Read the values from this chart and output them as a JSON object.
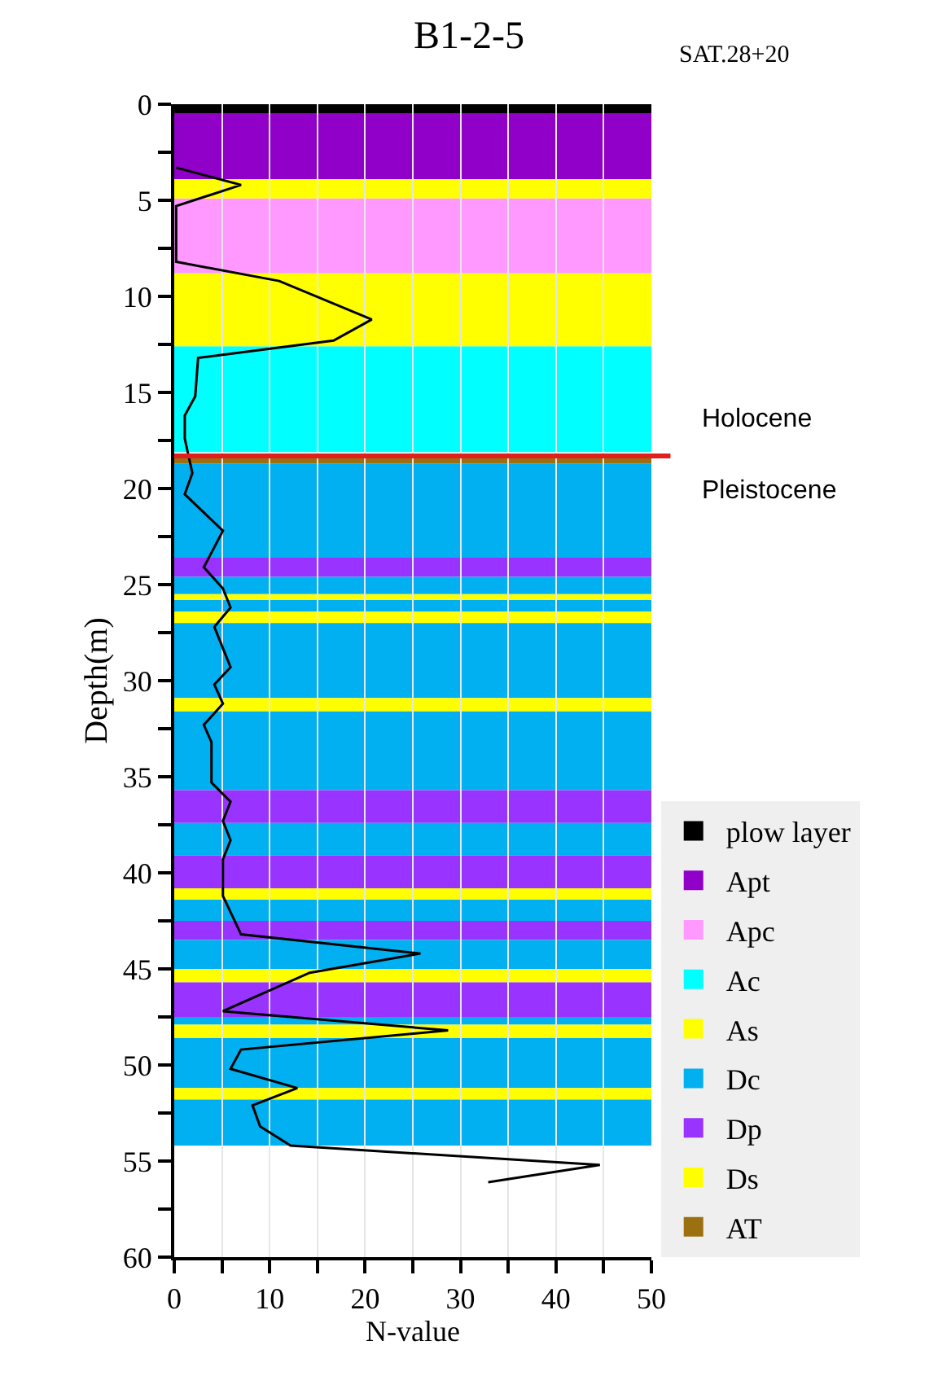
{
  "chart_data": {
    "type": "line",
    "title": "B1-2-5",
    "subtitle": "SAT.28+20",
    "xlabel": "N-value",
    "ylabel": "Depth(m)",
    "xlim": [
      0,
      50
    ],
    "xticks": [
      0,
      {
        "value": 5,
        "label": null
      },
      10,
      {
        "value": 15,
        "label": null
      },
      20,
      {
        "value": 25,
        "label": null
      },
      30,
      {
        "value": 35,
        "label": null
      },
      40,
      {
        "value": 45,
        "label": null
      },
      50
    ],
    "ylim": [
      60,
      0
    ],
    "yticks": [
      0,
      {
        "value": 2.5,
        "label": null
      },
      5,
      {
        "value": 7.5,
        "label": null
      },
      10,
      {
        "value": 12.5,
        "label": null
      },
      15,
      {
        "value": 17.5,
        "label": null
      },
      20,
      {
        "value": 22.5,
        "label": null
      },
      25,
      {
        "value": 27.5,
        "label": null
      },
      30,
      {
        "value": 32.5,
        "label": null
      },
      35,
      {
        "value": 37.5,
        "label": null
      },
      40,
      {
        "value": 42.5,
        "label": null
      },
      45,
      {
        "value": 47.5,
        "label": null
      },
      50,
      {
        "value": 52.5,
        "label": null
      },
      55,
      {
        "value": 57.5,
        "label": null
      },
      60
    ],
    "grid": "x",
    "legend": "right",
    "marker": "none",
    "line_style": "solid",
    "series": [
      {
        "color": "#000000",
        "x": [
          0.2,
          7.0,
          0.2,
          0.2,
          11.0,
          20.7,
          16.7,
          2.5,
          2.2,
          1.1,
          1.1,
          1.9,
          1.1,
          5.1,
          3.1,
          5.1,
          5.9,
          4.2,
          5.9,
          4.2,
          5.1,
          3.1,
          3.9,
          3.9,
          5.9,
          5.1,
          5.9,
          5.1,
          5.1,
          7.0,
          25.8,
          14.2,
          5.1,
          28.7,
          7.0,
          5.9,
          12.9,
          8.2,
          9.0,
          12.2,
          44.6,
          32.9
        ],
        "values": [
          3.3,
          4.2,
          5.3,
          8.2,
          9.2,
          11.2,
          12.3,
          13.2,
          15.2,
          16.2,
          17.4,
          19.2,
          20.3,
          22.2,
          24.1,
          25.2,
          26.2,
          27.2,
          29.3,
          30.2,
          31.2,
          32.3,
          33.2,
          35.3,
          36.3,
          37.3,
          38.3,
          39.3,
          41.2,
          43.2,
          44.2,
          45.2,
          47.2,
          48.2,
          49.2,
          50.2,
          51.2,
          52.1,
          53.2,
          54.2,
          55.2,
          56.1
        ]
      }
    ],
    "bands": [
      {
        "axis": "y",
        "from": 0,
        "to": 0.5,
        "label": "plow layer",
        "color": "#000000"
      },
      {
        "axis": "y",
        "from": 0.5,
        "to": 3.9,
        "label": "Apt",
        "color": "#9000c8"
      },
      {
        "axis": "y",
        "from": 4.9,
        "to": 8.8,
        "label": "Apc",
        "color": "#ff99ff"
      },
      {
        "axis": "y",
        "from": 12.6,
        "to": 18.1,
        "label": "Ac",
        "color": "#00ffff"
      },
      {
        "axis": "y",
        "from": 8.8,
        "to": 12.6,
        "label": "As",
        "color": "#ffff00"
      },
      {
        "axis": "y",
        "from": 18.7,
        "to": 23.6,
        "label": "Dc",
        "color": "#00b0f0"
      },
      {
        "axis": "y",
        "from": 23.6,
        "to": 24.6,
        "label": "Dp",
        "color": "#9933ff"
      },
      {
        "axis": "y",
        "from": 26.4,
        "to": 27.0,
        "label": "Ds",
        "color": "#ffff00"
      },
      {
        "axis": "y",
        "from": 18.3,
        "to": 18.7,
        "label": "AT",
        "color": "#9c6f10"
      },
      {
        "axis": "y",
        "from": 3.9,
        "to": 4.9,
        "color": "#ffff00"
      },
      {
        "axis": "y",
        "from": 24.6,
        "to": 25.5,
        "color": "#00b0f0"
      },
      {
        "axis": "y",
        "from": 25.5,
        "to": 25.8,
        "color": "#ffff00"
      },
      {
        "axis": "y",
        "from": 25.8,
        "to": 26.4,
        "color": "#00b0f0"
      },
      {
        "axis": "y",
        "from": 27.0,
        "to": 30.9,
        "color": "#00b0f0"
      },
      {
        "axis": "y",
        "from": 30.9,
        "to": 31.6,
        "color": "#ffff00"
      },
      {
        "axis": "y",
        "from": 31.6,
        "to": 35.7,
        "color": "#00b0f0"
      },
      {
        "axis": "y",
        "from": 35.7,
        "to": 37.4,
        "color": "#9933ff"
      },
      {
        "axis": "y",
        "from": 37.4,
        "to": 39.1,
        "color": "#00b0f0"
      },
      {
        "axis": "y",
        "from": 39.1,
        "to": 40.8,
        "color": "#9933ff"
      },
      {
        "axis": "y",
        "from": 40.8,
        "to": 41.4,
        "color": "#ffff00"
      },
      {
        "axis": "y",
        "from": 41.4,
        "to": 42.5,
        "color": "#00b0f0"
      },
      {
        "axis": "y",
        "from": 42.5,
        "to": 43.5,
        "color": "#9933ff"
      },
      {
        "axis": "y",
        "from": 43.5,
        "to": 45.0,
        "color": "#00b0f0"
      },
      {
        "axis": "y",
        "from": 45.0,
        "to": 45.7,
        "color": "#ffff00"
      },
      {
        "axis": "y",
        "from": 45.7,
        "to": 47.5,
        "color": "#9933ff"
      },
      {
        "axis": "y",
        "from": 47.5,
        "to": 47.9,
        "color": "#00b0f0"
      },
      {
        "axis": "y",
        "from": 47.9,
        "to": 48.6,
        "color": "#ffff00"
      },
      {
        "axis": "y",
        "from": 48.6,
        "to": 51.2,
        "color": "#00b0f0"
      },
      {
        "axis": "y",
        "from": 51.2,
        "to": 51.8,
        "color": "#ffff00"
      },
      {
        "axis": "y",
        "from": 51.8,
        "to": 54.2,
        "color": "#00b0f0"
      }
    ],
    "ref_lines": [
      {
        "axis": "y",
        "value": 18.3,
        "color": "#e0201b"
      }
    ],
    "annotations": [
      "Holocene",
      "Pleistocene"
    ]
  }
}
